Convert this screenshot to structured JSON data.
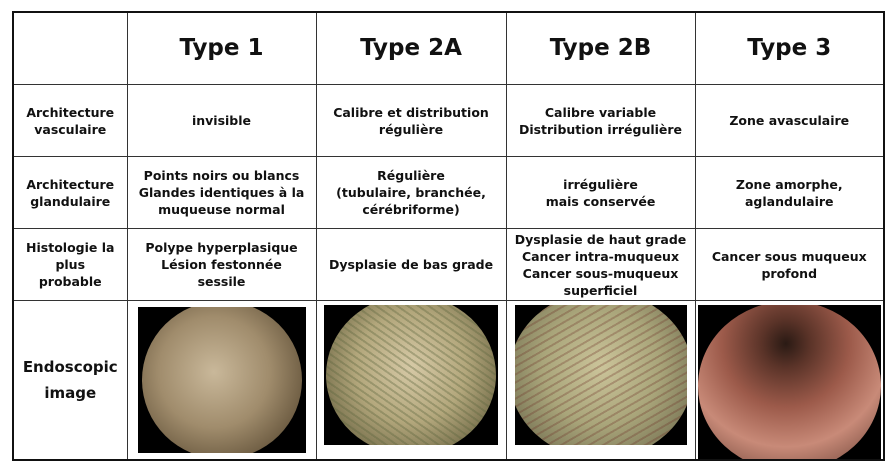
{
  "columns": [
    "",
    "Type 1",
    "Type 2A",
    "Type 2B",
    "Type 3"
  ],
  "rows": [
    {
      "header": [
        "Architecture",
        "vasculaire"
      ],
      "cells": [
        [
          "invisible"
        ],
        [
          "Calibre et distribution",
          "régulière"
        ],
        [
          "Calibre variable",
          "Distribution irrégulière"
        ],
        [
          "Zone avasculaire"
        ]
      ]
    },
    {
      "header": [
        "Architecture",
        "glandulaire"
      ],
      "cells": [
        [
          "Points noirs ou blancs",
          "Glandes identiques à la",
          "muqueuse normal"
        ],
        [
          "Régulière",
          "(tubulaire, branchée,",
          "cérébriforme)"
        ],
        [
          "irrégulière",
          "mais conservée"
        ],
        [
          "Zone amorphe,",
          "aglandulaire"
        ]
      ]
    },
    {
      "header": [
        "Histologie la",
        "plus",
        "probable"
      ],
      "cells": [
        [
          "Polype hyperplasique",
          "Lésion festonnée",
          "sessile"
        ],
        [
          "Dysplasie de bas grade"
        ],
        [
          "Dysplasie de haut grade",
          "Cancer intra-muqueux",
          "Cancer sous-muqueux",
          "superficiel"
        ],
        [
          "Cancer sous muqueux",
          "profond"
        ]
      ]
    }
  ],
  "image_row": {
    "header": [
      "Endoscopic",
      "image"
    ]
  }
}
